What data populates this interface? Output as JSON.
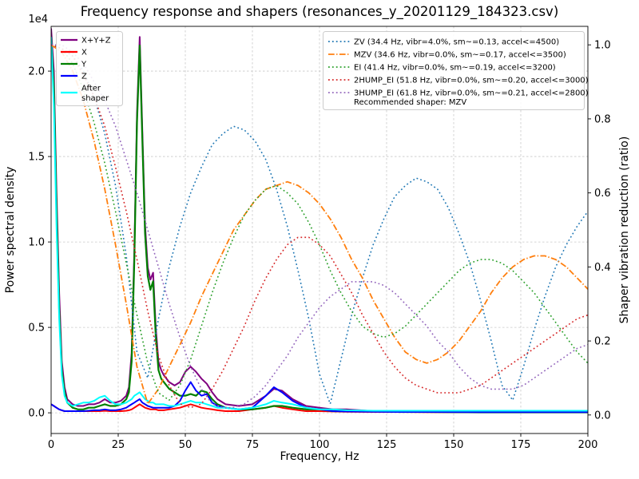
{
  "chart_data": {
    "type": "line",
    "title": "Frequency response and shapers (resonances_y_20201129_184323.csv)",
    "xlabel": "Frequency, Hz",
    "ylabel_left": "Power spectral density",
    "ylabel_right": "Shaper vibration reduction (ratio)",
    "y_left_scale": "1e4",
    "xlim": [
      0,
      200
    ],
    "ylim_left": [
      -0.121,
      2.262
    ],
    "ylim_right": [
      -0.05,
      1.05
    ],
    "grid": true,
    "x_ticks": [
      0,
      25,
      50,
      75,
      100,
      125,
      150,
      175,
      200
    ],
    "x_tick_labels": [
      "0",
      "25",
      "50",
      "75",
      "100",
      "125",
      "150",
      "175",
      "200"
    ],
    "y_ticks_left": [
      0,
      0.5,
      1.0,
      1.5,
      2.0
    ],
    "y_tick_labels_left": [
      "0.0",
      "0.5",
      "1.0",
      "1.5",
      "2.0"
    ],
    "y_ticks_right": [
      0,
      0.2,
      0.4,
      0.6,
      0.8,
      1.0
    ],
    "y_tick_labels_right": [
      "0.0",
      "0.2",
      "0.4",
      "0.6",
      "0.8",
      "1.0"
    ],
    "x_psd": [
      0,
      1,
      2,
      3,
      4,
      5,
      6,
      8,
      10,
      12,
      14,
      16,
      18,
      20,
      22,
      24,
      26,
      28,
      29,
      30,
      31,
      32,
      33,
      34,
      35,
      36,
      37,
      38,
      39,
      40,
      41,
      42,
      44,
      46,
      48,
      50,
      52,
      54,
      56,
      58,
      60,
      62,
      65,
      70,
      75,
      80,
      83,
      86,
      90,
      95,
      100,
      105,
      110,
      120,
      130,
      140,
      160,
      180,
      200
    ],
    "x_shaper": [
      0,
      4,
      8,
      12,
      16,
      20,
      24,
      28,
      32,
      36,
      40,
      44,
      48,
      52,
      56,
      60,
      64,
      68,
      72,
      76,
      80,
      84,
      88,
      92,
      96,
      100,
      104,
      108,
      112,
      116,
      120,
      124,
      128,
      132,
      136,
      140,
      144,
      148,
      152,
      156,
      160,
      164,
      168,
      172,
      176,
      180,
      184,
      188,
      192,
      196,
      200
    ],
    "series": [
      {
        "name": "X+Y+Z",
        "axis": "left",
        "color": "#800080",
        "style": "solid",
        "width": 2,
        "x_ref": "x_psd",
        "y": [
          2.25,
          2.0,
          1.3,
          0.7,
          0.3,
          0.15,
          0.08,
          0.05,
          0.04,
          0.04,
          0.05,
          0.05,
          0.06,
          0.08,
          0.06,
          0.06,
          0.07,
          0.1,
          0.15,
          0.35,
          0.95,
          1.75,
          2.2,
          1.65,
          1.1,
          0.85,
          0.78,
          0.82,
          0.5,
          0.3,
          0.25,
          0.22,
          0.18,
          0.16,
          0.18,
          0.24,
          0.27,
          0.24,
          0.2,
          0.17,
          0.12,
          0.08,
          0.05,
          0.04,
          0.05,
          0.1,
          0.14,
          0.13,
          0.08,
          0.04,
          0.03,
          0.02,
          0.02,
          0.01,
          0.008,
          0.006,
          0.004,
          0.004,
          0.004
        ]
      },
      {
        "name": "X",
        "axis": "left",
        "color": "#ff0000",
        "style": "solid",
        "width": 2,
        "x_ref": "x_psd",
        "y": [
          0.05,
          0.04,
          0.03,
          0.02,
          0.015,
          0.01,
          0.01,
          0.01,
          0.01,
          0.01,
          0.01,
          0.01,
          0.01,
          0.012,
          0.01,
          0.01,
          0.01,
          0.012,
          0.015,
          0.02,
          0.03,
          0.04,
          0.05,
          0.04,
          0.03,
          0.025,
          0.02,
          0.02,
          0.02,
          0.015,
          0.015,
          0.015,
          0.02,
          0.025,
          0.03,
          0.04,
          0.05,
          0.04,
          0.03,
          0.025,
          0.02,
          0.015,
          0.01,
          0.01,
          0.02,
          0.03,
          0.04,
          0.03,
          0.02,
          0.01,
          0.01,
          0.008,
          0.006,
          0.005,
          0.005,
          0.004,
          0.003,
          0.003,
          0.003
        ]
      },
      {
        "name": "Y",
        "axis": "left",
        "color": "#008000",
        "style": "solid",
        "width": 2.2,
        "x_ref": "x_psd",
        "y": [
          2.2,
          1.9,
          1.2,
          0.6,
          0.25,
          0.12,
          0.06,
          0.03,
          0.02,
          0.02,
          0.03,
          0.03,
          0.04,
          0.05,
          0.04,
          0.04,
          0.05,
          0.08,
          0.12,
          0.3,
          0.9,
          1.7,
          2.15,
          1.6,
          1.05,
          0.8,
          0.72,
          0.77,
          0.45,
          0.25,
          0.2,
          0.18,
          0.14,
          0.12,
          0.1,
          0.1,
          0.11,
          0.1,
          0.13,
          0.12,
          0.08,
          0.05,
          0.03,
          0.02,
          0.02,
          0.03,
          0.04,
          0.04,
          0.03,
          0.02,
          0.02,
          0.01,
          0.01,
          0.01,
          0.005,
          0.005,
          0.003,
          0.003,
          0.003
        ]
      },
      {
        "name": "Z",
        "axis": "left",
        "color": "#0000ff",
        "style": "solid",
        "width": 2,
        "x_ref": "x_psd",
        "y": [
          0.05,
          0.04,
          0.03,
          0.02,
          0.015,
          0.01,
          0.01,
          0.01,
          0.01,
          0.01,
          0.012,
          0.015,
          0.015,
          0.02,
          0.015,
          0.015,
          0.02,
          0.03,
          0.04,
          0.05,
          0.06,
          0.07,
          0.08,
          0.06,
          0.05,
          0.04,
          0.035,
          0.03,
          0.03,
          0.03,
          0.03,
          0.03,
          0.03,
          0.04,
          0.07,
          0.13,
          0.18,
          0.13,
          0.1,
          0.11,
          0.06,
          0.04,
          0.03,
          0.02,
          0.03,
          0.1,
          0.15,
          0.12,
          0.07,
          0.03,
          0.02,
          0.01,
          0.008,
          0.006,
          0.005,
          0.005,
          0.004,
          0.004,
          0.004
        ]
      },
      {
        "name": "After shaper",
        "axis": "left",
        "color": "#00ffff",
        "style": "solid",
        "width": 2,
        "x_ref": "x_psd",
        "y": [
          2.2,
          1.8,
          1.1,
          0.55,
          0.22,
          0.1,
          0.06,
          0.04,
          0.05,
          0.06,
          0.06,
          0.07,
          0.09,
          0.1,
          0.07,
          0.05,
          0.05,
          0.06,
          0.07,
          0.08,
          0.1,
          0.11,
          0.12,
          0.1,
          0.08,
          0.07,
          0.06,
          0.06,
          0.05,
          0.05,
          0.05,
          0.05,
          0.04,
          0.04,
          0.05,
          0.06,
          0.07,
          0.06,
          0.06,
          0.05,
          0.04,
          0.03,
          0.03,
          0.02,
          0.03,
          0.05,
          0.07,
          0.06,
          0.05,
          0.03,
          0.02,
          0.02,
          0.015,
          0.012,
          0.012,
          0.012,
          0.012,
          0.012,
          0.012
        ]
      },
      {
        "name": "ZV",
        "axis": "right",
        "color": "#1f77b4",
        "style": "dotted",
        "width": 1.6,
        "x_ref": "x_shaper",
        "y": [
          1.0,
          0.99,
          0.97,
          0.93,
          0.86,
          0.76,
          0.62,
          0.43,
          0.17,
          0.1,
          0.26,
          0.4,
          0.51,
          0.6,
          0.67,
          0.73,
          0.76,
          0.78,
          0.77,
          0.74,
          0.69,
          0.61,
          0.51,
          0.39,
          0.26,
          0.11,
          0.03,
          0.15,
          0.27,
          0.37,
          0.46,
          0.53,
          0.59,
          0.62,
          0.64,
          0.63,
          0.61,
          0.56,
          0.49,
          0.41,
          0.31,
          0.2,
          0.08,
          0.04,
          0.13,
          0.23,
          0.32,
          0.4,
          0.46,
          0.51,
          0.55
        ]
      },
      {
        "name": "MZV",
        "axis": "right",
        "color": "#ff7f0e",
        "style": "dashdot",
        "width": 1.8,
        "x_ref": "x_shaper",
        "y": [
          1.0,
          0.98,
          0.93,
          0.85,
          0.74,
          0.61,
          0.46,
          0.3,
          0.13,
          0.03,
          0.07,
          0.13,
          0.19,
          0.25,
          0.32,
          0.38,
          0.44,
          0.5,
          0.54,
          0.58,
          0.61,
          0.62,
          0.63,
          0.62,
          0.6,
          0.57,
          0.53,
          0.48,
          0.42,
          0.37,
          0.31,
          0.26,
          0.21,
          0.17,
          0.15,
          0.14,
          0.15,
          0.17,
          0.2,
          0.24,
          0.28,
          0.33,
          0.37,
          0.4,
          0.42,
          0.43,
          0.43,
          0.42,
          0.4,
          0.37,
          0.34
        ]
      },
      {
        "name": "EI",
        "axis": "right",
        "color": "#2ca02c",
        "style": "dotted",
        "width": 1.6,
        "x_ref": "x_shaper",
        "y": [
          1.0,
          0.99,
          0.95,
          0.88,
          0.79,
          0.68,
          0.55,
          0.41,
          0.27,
          0.14,
          0.06,
          0.04,
          0.08,
          0.15,
          0.24,
          0.33,
          0.41,
          0.48,
          0.54,
          0.58,
          0.61,
          0.62,
          0.6,
          0.57,
          0.52,
          0.46,
          0.39,
          0.33,
          0.28,
          0.24,
          0.22,
          0.21,
          0.22,
          0.24,
          0.27,
          0.3,
          0.33,
          0.36,
          0.39,
          0.41,
          0.42,
          0.42,
          0.41,
          0.39,
          0.36,
          0.33,
          0.29,
          0.25,
          0.21,
          0.17,
          0.14
        ]
      },
      {
        "name": "2HUMP_EI",
        "axis": "right",
        "color": "#d62728",
        "style": "dotted",
        "width": 1.6,
        "x_ref": "x_shaper",
        "y": [
          1.0,
          0.99,
          0.97,
          0.92,
          0.86,
          0.78,
          0.67,
          0.55,
          0.42,
          0.28,
          0.16,
          0.08,
          0.03,
          0.02,
          0.03,
          0.07,
          0.12,
          0.18,
          0.24,
          0.31,
          0.37,
          0.42,
          0.46,
          0.48,
          0.48,
          0.46,
          0.43,
          0.38,
          0.33,
          0.27,
          0.22,
          0.17,
          0.13,
          0.1,
          0.08,
          0.07,
          0.06,
          0.06,
          0.06,
          0.07,
          0.08,
          0.1,
          0.12,
          0.14,
          0.16,
          0.18,
          0.2,
          0.22,
          0.24,
          0.26,
          0.27
        ]
      },
      {
        "name": "3HUMP_EI",
        "axis": "right",
        "color": "#9467bd",
        "style": "dotted",
        "width": 1.6,
        "x_ref": "x_shaper",
        "y": [
          1.0,
          1.0,
          0.98,
          0.95,
          0.9,
          0.85,
          0.78,
          0.69,
          0.6,
          0.5,
          0.4,
          0.3,
          0.21,
          0.13,
          0.07,
          0.03,
          0.02,
          0.02,
          0.03,
          0.05,
          0.08,
          0.12,
          0.16,
          0.21,
          0.25,
          0.29,
          0.32,
          0.34,
          0.36,
          0.36,
          0.36,
          0.35,
          0.33,
          0.3,
          0.27,
          0.24,
          0.2,
          0.17,
          0.13,
          0.1,
          0.08,
          0.07,
          0.07,
          0.07,
          0.08,
          0.1,
          0.12,
          0.14,
          0.16,
          0.18,
          0.19
        ]
      }
    ]
  },
  "legend_psd": {
    "items": [
      {
        "label": "X+Y+Z",
        "color": "#800080"
      },
      {
        "label": "X",
        "color": "#ff0000"
      },
      {
        "label": "Y",
        "color": "#008000"
      },
      {
        "label": "Z",
        "color": "#0000ff"
      },
      {
        "label": "After\nshaper",
        "color": "#00ffff"
      }
    ]
  },
  "legend_shapers": {
    "items": [
      {
        "label": "ZV (34.4 Hz, vibr=4.0%, sm~=0.13, accel<=4500)",
        "color": "#1f77b4",
        "style": "dotted"
      },
      {
        "label": "MZV (34.6 Hz, vibr=0.0%, sm~=0.17, accel<=3500)",
        "color": "#ff7f0e",
        "style": "dashdot"
      },
      {
        "label": "EI (41.4 Hz, vibr=0.0%, sm~=0.19, accel<=3200)",
        "color": "#2ca02c",
        "style": "dotted"
      },
      {
        "label": "2HUMP_EI (51.8 Hz, vibr=0.0%, sm~=0.20, accel<=3000)",
        "color": "#d62728",
        "style": "dotted"
      },
      {
        "label": "3HUMP_EI (61.8 Hz, vibr=0.0%, sm~=0.21, accel<=2800)",
        "color": "#9467bd",
        "style": "dotted"
      }
    ],
    "note": "Recommended shaper: MZV"
  },
  "colors": {
    "grid": "#c8c8c8",
    "frame": "#000000",
    "legend_border": "#cccccc",
    "recommended_accent": "#ff7f0e"
  }
}
